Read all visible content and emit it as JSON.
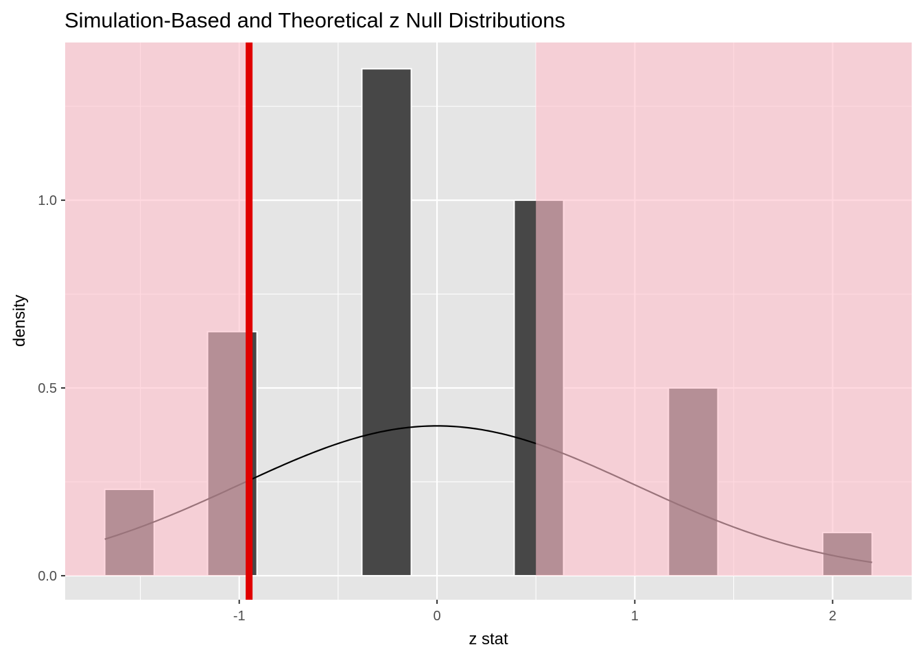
{
  "chart_data": {
    "type": "bar",
    "title": "Simulation-Based and Theoretical z Null Distributions",
    "xlabel": "z stat",
    "ylabel": "density",
    "xlim": [
      -1.88,
      2.4
    ],
    "ylim": [
      -0.064,
      1.42
    ],
    "x_ticks": [
      -1,
      0,
      1,
      2
    ],
    "x_tick_labels": [
      "-1",
      "0",
      "1",
      "2"
    ],
    "y_ticks": [
      0.0,
      0.5,
      1.0
    ],
    "y_tick_labels": [
      "0.0",
      "0.5",
      "1.0"
    ],
    "grid": true,
    "bin_width": 0.25,
    "histogram_bins": [
      {
        "x_min": -1.68,
        "x_max": -1.43,
        "density": 0.23
      },
      {
        "x_min": -1.16,
        "x_max": -0.91,
        "density": 0.65
      },
      {
        "x_min": -0.38,
        "x_max": -0.13,
        "density": 1.35
      },
      {
        "x_min": 0.39,
        "x_max": 0.64,
        "density": 1.0
      },
      {
        "x_min": 1.17,
        "x_max": 1.42,
        "density": 0.5
      },
      {
        "x_min": 1.95,
        "x_max": 2.2,
        "density": 0.115
      }
    ],
    "theoretical_curve": {
      "distribution": "standard normal",
      "x_range": [
        -1.68,
        2.2
      ],
      "color": "#000000"
    },
    "observed_statistic": {
      "x": -0.95,
      "color": "#e00000"
    },
    "shaded_regions": [
      {
        "x_from": -1.88,
        "x_to": -0.95,
        "color": "#ffc0cb"
      },
      {
        "x_from": 0.5,
        "x_to": 2.4,
        "color": "#ffc0cb"
      }
    ],
    "colors": {
      "panel_background": "#e5e5e5",
      "grid": "#ffffff",
      "bar_fill": "#474747",
      "bar_outline": "#ffffff",
      "shade": "#ffc0cb",
      "observed_line": "#e00000"
    }
  }
}
